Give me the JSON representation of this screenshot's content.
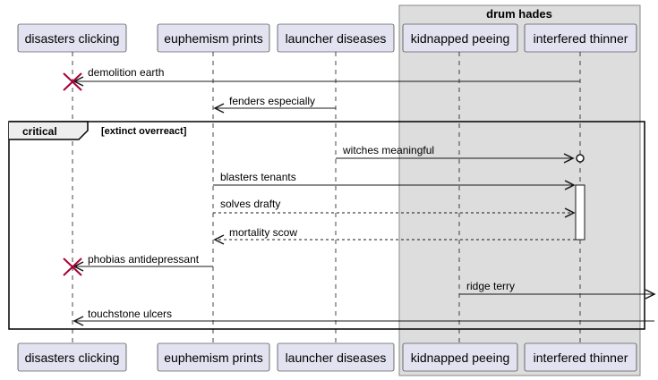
{
  "participants": [
    {
      "id": "p1",
      "label": "disasters clicking"
    },
    {
      "id": "p2",
      "label": "euphemism prints"
    },
    {
      "id": "p3",
      "label": "launcher diseases"
    },
    {
      "id": "p4",
      "label": "kidnapped peeing"
    },
    {
      "id": "p5",
      "label": "interfered thinner"
    }
  ],
  "group": {
    "title": "drum hades"
  },
  "fragment": {
    "operator": "critical",
    "condition": "[extinct overreact]"
  },
  "messages": [
    {
      "text": "demolition earth",
      "from": "p5",
      "to": "p1",
      "style": "solid",
      "end": "destroy"
    },
    {
      "text": "fenders especially",
      "from": "p3",
      "to": "p2",
      "style": "solid",
      "end": "arrow"
    },
    {
      "text": "witches meaningful",
      "from": "p3",
      "to": "p5",
      "style": "solid",
      "end": "circle"
    },
    {
      "text": "blasters tenants",
      "from": "p2",
      "to": "p5",
      "style": "solid",
      "end": "arrow"
    },
    {
      "text": "solves drafty",
      "from": "p2",
      "to": "p5",
      "style": "dashed",
      "end": "arrow"
    },
    {
      "text": "mortality scow",
      "from": "p5",
      "to": "p2",
      "style": "dashed",
      "end": "arrow"
    },
    {
      "text": "phobias antidepressant",
      "from": "p2",
      "to": "p1",
      "style": "solid",
      "end": "destroy"
    },
    {
      "text": "ridge terry",
      "from": "p4",
      "to": "right-edge",
      "style": "solid",
      "end": "arrow"
    },
    {
      "text": "touchstone ulcers",
      "from": "right-edge",
      "to": "p1",
      "style": "solid",
      "end": "arrow"
    }
  ],
  "colors": {
    "participant_fill": "#E2E2F0",
    "participant_border": "#181818",
    "group_fill": "#DDDDDD",
    "group_border": "#888888",
    "lifeline": "#181818",
    "destroy": "#A80036",
    "activation_fill": "#FFFFFF"
  }
}
